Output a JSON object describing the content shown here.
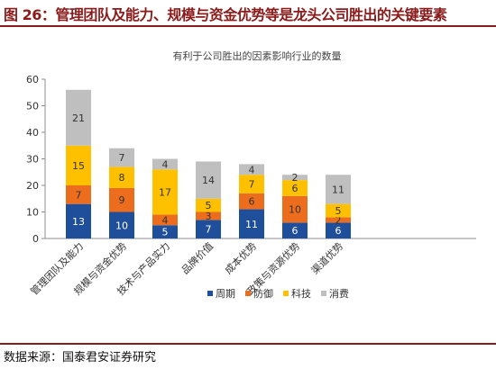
{
  "figure_title": "图 26：管理团队及能力、规模与资金优势等是龙头公司胜出的关键要素",
  "source": "数据来源：国泰君安证券研究",
  "chart_data": {
    "type": "bar",
    "stacked": true,
    "title": "有利于公司胜出的因素影响行业的数量",
    "categories": [
      "管理团队及能力",
      "规模与资金优势",
      "技术与产品实力",
      "品牌价值",
      "成本优势",
      "政策与资源优势",
      "渠道优势"
    ],
    "series": [
      {
        "name": "周期",
        "color": "#1f4e9b",
        "values": [
          13,
          10,
          5,
          7,
          11,
          6,
          6
        ]
      },
      {
        "name": "防御",
        "color": "#ed6d1f",
        "values": [
          7,
          9,
          4,
          3,
          6,
          10,
          2
        ]
      },
      {
        "name": "科技",
        "color": "#ffc000",
        "values": [
          15,
          8,
          17,
          5,
          7,
          6,
          5
        ]
      },
      {
        "name": "消费",
        "color": "#bfbfbf",
        "values": [
          21,
          7,
          4,
          14,
          4,
          2,
          11
        ]
      }
    ],
    "ylim": [
      0,
      60
    ],
    "yticks": [
      0,
      10,
      20,
      30,
      40,
      50,
      60
    ],
    "legend_position": "bottom-right",
    "grid": false
  }
}
